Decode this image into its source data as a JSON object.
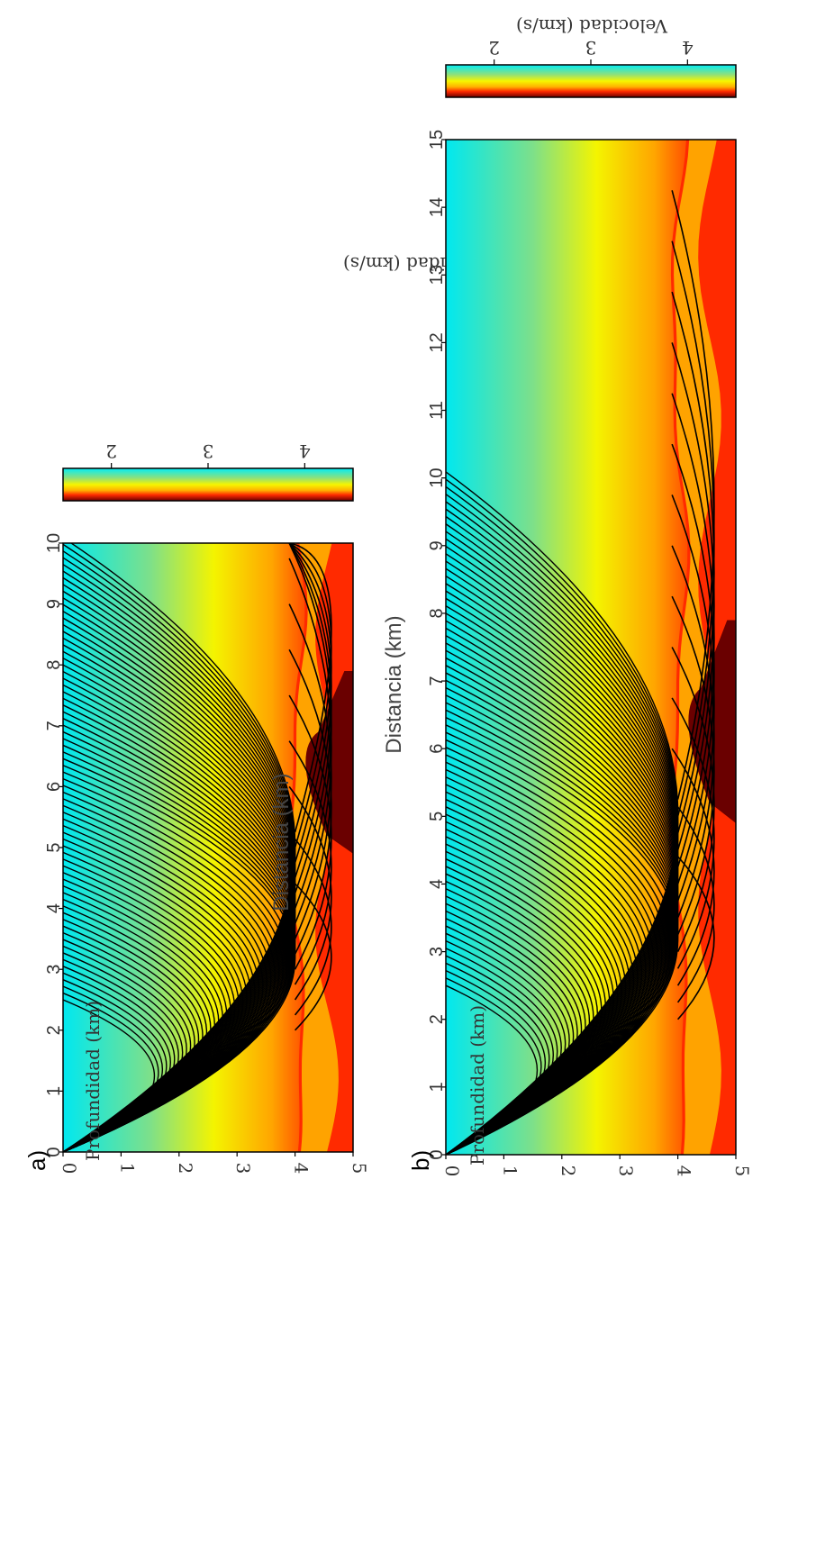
{
  "figure": {
    "panel_labels": [
      "a)",
      "b)"
    ]
  },
  "chart_data": [
    {
      "type": "heatmap",
      "panel": "a)",
      "xlabel": "Distancia (km)",
      "ylabel": "Profundidad (km)",
      "xlim": [
        0,
        10
      ],
      "ylim": [
        0,
        5
      ],
      "x_ticks": [
        "0",
        "1",
        "2",
        "3",
        "4",
        "5",
        "6",
        "7",
        "8",
        "9",
        "10"
      ],
      "y_ticks": [
        "0",
        "1",
        "2",
        "3",
        "4",
        "5"
      ],
      "colorbar": {
        "label": "Velocidad (km/s)",
        "ticks": [
          "2",
          "3",
          "4"
        ],
        "range": [
          1.5,
          4.5
        ]
      },
      "layer_depth_km": 4.0,
      "source_x_km": 0,
      "overlay": "ray paths (black curves)",
      "grid": false
    },
    {
      "type": "heatmap",
      "panel": "b)",
      "xlabel": "Distancia (km)",
      "ylabel": "Profundidad (km)",
      "xlim": [
        0,
        15
      ],
      "ylim": [
        0,
        5
      ],
      "x_ticks": [
        "0",
        "1",
        "2",
        "3",
        "4",
        "5",
        "6",
        "7",
        "8",
        "9",
        "10",
        "11",
        "12",
        "13",
        "14",
        "15"
      ],
      "y_ticks": [
        "0",
        "1",
        "2",
        "3",
        "4",
        "5"
      ],
      "colorbar": {
        "label": "Velocidad (km/s)",
        "ticks": [
          "2",
          "3",
          "4"
        ],
        "range": [
          1.5,
          4.5
        ]
      },
      "layer_depth_km": 4.0,
      "source_x_km": 0,
      "overlay": "ray paths (black curves)",
      "grid": false
    }
  ]
}
